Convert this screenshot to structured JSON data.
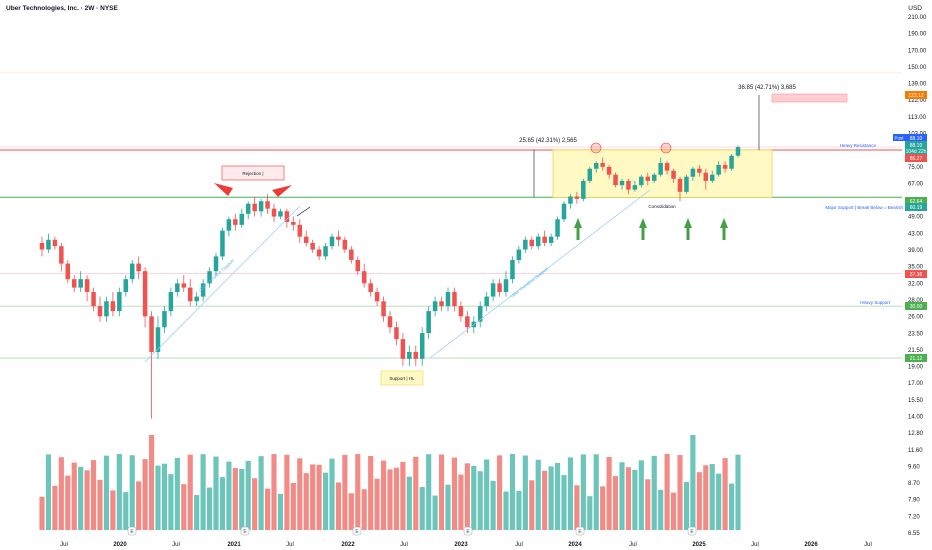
{
  "header": {
    "title": "Uber Technologies, Inc. · 2W · NYSE",
    "currency": "USD"
  },
  "colors": {
    "up": "#26a69a",
    "down": "#ef5350",
    "vol_up": "#6cc5bb",
    "vol_down": "#f28b86",
    "resistance": "#ef5350",
    "support": "#4caf50",
    "red_line": "#f48fb1",
    "box_fill": "#fff9c4",
    "box_border": "#f2d64b",
    "arrow_green": "#43a047",
    "arrow_red": "#ef3b36",
    "target_fill": "#ffcdd2",
    "orange_tag": "#f57c00",
    "blue_tag": "#2962ff",
    "grid": "#f0f3fa"
  },
  "price_axis": {
    "labels": [
      "210.00",
      "190.00",
      "170.00",
      "150.00",
      "139.00",
      "122.00",
      "113.00",
      "103.00",
      "85.00",
      "75.00",
      "67.00",
      "55.00",
      "49.00",
      "43.00",
      "39.00",
      "35.00",
      "32.00",
      "28.00",
      "26.00",
      "23.50",
      "21.50",
      "19.00",
      "17.00",
      "15.50",
      "14.00",
      "12.80",
      "11.60",
      "9.60",
      "8.70",
      "7.90",
      "7.20",
      "6.55"
    ],
    "tags": [
      {
        "label": "Post",
        "value": "",
        "color": "#2962ff"
      },
      {
        "label": "88.10",
        "color": "#2962ff"
      },
      {
        "label": "88.10",
        "color": "#26a69a"
      },
      {
        "label": "104d 22h",
        "color": "#26a69a"
      },
      {
        "label": "86.27",
        "color": "#ef5350"
      },
      {
        "label": "123.12",
        "color": "#f57c00"
      },
      {
        "label": "62.64",
        "color": "#4caf50"
      },
      {
        "label": "60.19",
        "color": "#26a69a"
      },
      {
        "label": "37.36",
        "color": "#ef5350"
      },
      {
        "label": "30.00",
        "color": "#4caf50"
      },
      {
        "label": "21.12",
        "color": "#4caf50"
      }
    ]
  },
  "time_axis": [
    "Jul",
    "2020",
    "Jul",
    "2021",
    "Jul",
    "2022",
    "Jul",
    "2023",
    "Jul",
    "2024",
    "Jul",
    "2025",
    "Jul",
    "2026",
    "Jul"
  ],
  "annotations": {
    "rejection": "Rejection |",
    "heavy_resistance": "Heavy Resistance",
    "consolidation": "Consolidation",
    "major_support": "Major Support | Break Below = Bearish",
    "heavy_support": "Heavy Support",
    "support_hl": "Support | HL",
    "measure_1": "25.65 (42.31%) 2,565",
    "measure_2": "36.85 (42.71%) 3,685",
    "trendline_1": "Uber Trendline Support",
    "trendline_2": "Uber Trendline Support",
    "earnings_marker": "E"
  },
  "chart_data": {
    "type": "candlestick",
    "title": "Uber Technologies, Inc. · 2W · NYSE",
    "y_scale": "log",
    "ylim": [
      6.55,
      210
    ],
    "levels": {
      "heavy_resistance": 86.27,
      "major_support": 62.64,
      "heavy_support": 30.0,
      "low_support": 21.12,
      "red_level": 37.36,
      "target": 123.12
    },
    "measured_moves": [
      {
        "change": 25.65,
        "percent": 42.31,
        "ticks": 2565
      },
      {
        "change": 36.85,
        "percent": 42.71,
        "ticks": 3685
      }
    ],
    "last_price": 88.1,
    "candles": [
      [
        46,
        44,
        48,
        42
      ],
      [
        44,
        47,
        49,
        43
      ],
      [
        47,
        45,
        48,
        44
      ],
      [
        45,
        40,
        46,
        38
      ],
      [
        40,
        36,
        41,
        35
      ],
      [
        36,
        34,
        37,
        33
      ],
      [
        34,
        36,
        38,
        33
      ],
      [
        36,
        33,
        37,
        31
      ],
      [
        33,
        30,
        34,
        29
      ],
      [
        30,
        28,
        32,
        27
      ],
      [
        28,
        31,
        32,
        27
      ],
      [
        31,
        29,
        33,
        28
      ],
      [
        29,
        33,
        34,
        28
      ],
      [
        33,
        36,
        37,
        32
      ],
      [
        36,
        40,
        41,
        35
      ],
      [
        40,
        38,
        42,
        36
      ],
      [
        38,
        28,
        39,
        26
      ],
      [
        28,
        22,
        29,
        14
      ],
      [
        22,
        26,
        28,
        21
      ],
      [
        26,
        29,
        30,
        25
      ],
      [
        29,
        33,
        34,
        28
      ],
      [
        33,
        35,
        36,
        32
      ],
      [
        35,
        34,
        37,
        33
      ],
      [
        34,
        31,
        36,
        30
      ],
      [
        31,
        32,
        33,
        30
      ],
      [
        32,
        35,
        36,
        31
      ],
      [
        35,
        38,
        39,
        34
      ],
      [
        38,
        42,
        43,
        37
      ],
      [
        42,
        50,
        51,
        41
      ],
      [
        50,
        54,
        55,
        48
      ],
      [
        54,
        52,
        56,
        50
      ],
      [
        52,
        56,
        58,
        51
      ],
      [
        56,
        60,
        61,
        54
      ],
      [
        60,
        57,
        63,
        55
      ],
      [
        57,
        61,
        62,
        55
      ],
      [
        61,
        58,
        64,
        56
      ],
      [
        58,
        55,
        60,
        53
      ],
      [
        55,
        57,
        58,
        54
      ],
      [
        57,
        53,
        58,
        51
      ],
      [
        53,
        52,
        55,
        50
      ],
      [
        52,
        48,
        54,
        46
      ],
      [
        48,
        46,
        50,
        45
      ],
      [
        46,
        44,
        47,
        43
      ],
      [
        44,
        42,
        45,
        41
      ],
      [
        42,
        45,
        46,
        41
      ],
      [
        45,
        48,
        49,
        44
      ],
      [
        48,
        47,
        50,
        45
      ],
      [
        47,
        44,
        48,
        43
      ],
      [
        44,
        41,
        45,
        40
      ],
      [
        41,
        38,
        42,
        37
      ],
      [
        38,
        35,
        40,
        34
      ],
      [
        35,
        33,
        36,
        32
      ],
      [
        33,
        31,
        34,
        30
      ],
      [
        31,
        28,
        32,
        27
      ],
      [
        28,
        26,
        29,
        25
      ],
      [
        26,
        24,
        27,
        23
      ],
      [
        24,
        21,
        25,
        20
      ],
      [
        21,
        22,
        23,
        20
      ],
      [
        22,
        21,
        23,
        20
      ],
      [
        21,
        25,
        26,
        20
      ],
      [
        25,
        29,
        30,
        24
      ],
      [
        29,
        31,
        32,
        28
      ],
      [
        31,
        30,
        32,
        29
      ],
      [
        30,
        33,
        34,
        29
      ],
      [
        33,
        30,
        34,
        29
      ],
      [
        30,
        28,
        31,
        27
      ],
      [
        28,
        26,
        29,
        25
      ],
      [
        26,
        27,
        28,
        25
      ],
      [
        27,
        30,
        31,
        26
      ],
      [
        30,
        32,
        33,
        29
      ],
      [
        32,
        35,
        36,
        31
      ],
      [
        35,
        33,
        36,
        32
      ],
      [
        33,
        36,
        38,
        32
      ],
      [
        36,
        41,
        42,
        35
      ],
      [
        41,
        44,
        45,
        40
      ],
      [
        44,
        47,
        48,
        43
      ],
      [
        47,
        45,
        48,
        44
      ],
      [
        45,
        48,
        49,
        44
      ],
      [
        48,
        46,
        50,
        45
      ],
      [
        46,
        48,
        49,
        45
      ],
      [
        48,
        54,
        55,
        47
      ],
      [
        54,
        60,
        61,
        53
      ],
      [
        60,
        63,
        64,
        58
      ],
      [
        63,
        62,
        65,
        60
      ],
      [
        62,
        70,
        71,
        61
      ],
      [
        70,
        76,
        77,
        69
      ],
      [
        76,
        79,
        80,
        74
      ],
      [
        79,
        77,
        82,
        75
      ],
      [
        77,
        73,
        78,
        71
      ],
      [
        73,
        68,
        74,
        67
      ],
      [
        68,
        70,
        71,
        66
      ],
      [
        70,
        66,
        71,
        64
      ],
      [
        66,
        68,
        70,
        65
      ],
      [
        68,
        72,
        73,
        67
      ],
      [
        72,
        70,
        74,
        68
      ],
      [
        70,
        73,
        74,
        69
      ],
      [
        73,
        79,
        82,
        72
      ],
      [
        79,
        75,
        80,
        73
      ],
      [
        75,
        71,
        76,
        69
      ],
      [
        71,
        65,
        72,
        61
      ],
      [
        65,
        72,
        73,
        64
      ],
      [
        72,
        76,
        77,
        70
      ],
      [
        76,
        74,
        78,
        72
      ],
      [
        74,
        70,
        76,
        66
      ],
      [
        70,
        73,
        75,
        69
      ],
      [
        73,
        78,
        80,
        72
      ],
      [
        78,
        76,
        80,
        74
      ],
      [
        76,
        83,
        84,
        75
      ],
      [
        83,
        88,
        89,
        82
      ]
    ],
    "volume_note": "Volume histogram below price, colored by candle direction"
  }
}
